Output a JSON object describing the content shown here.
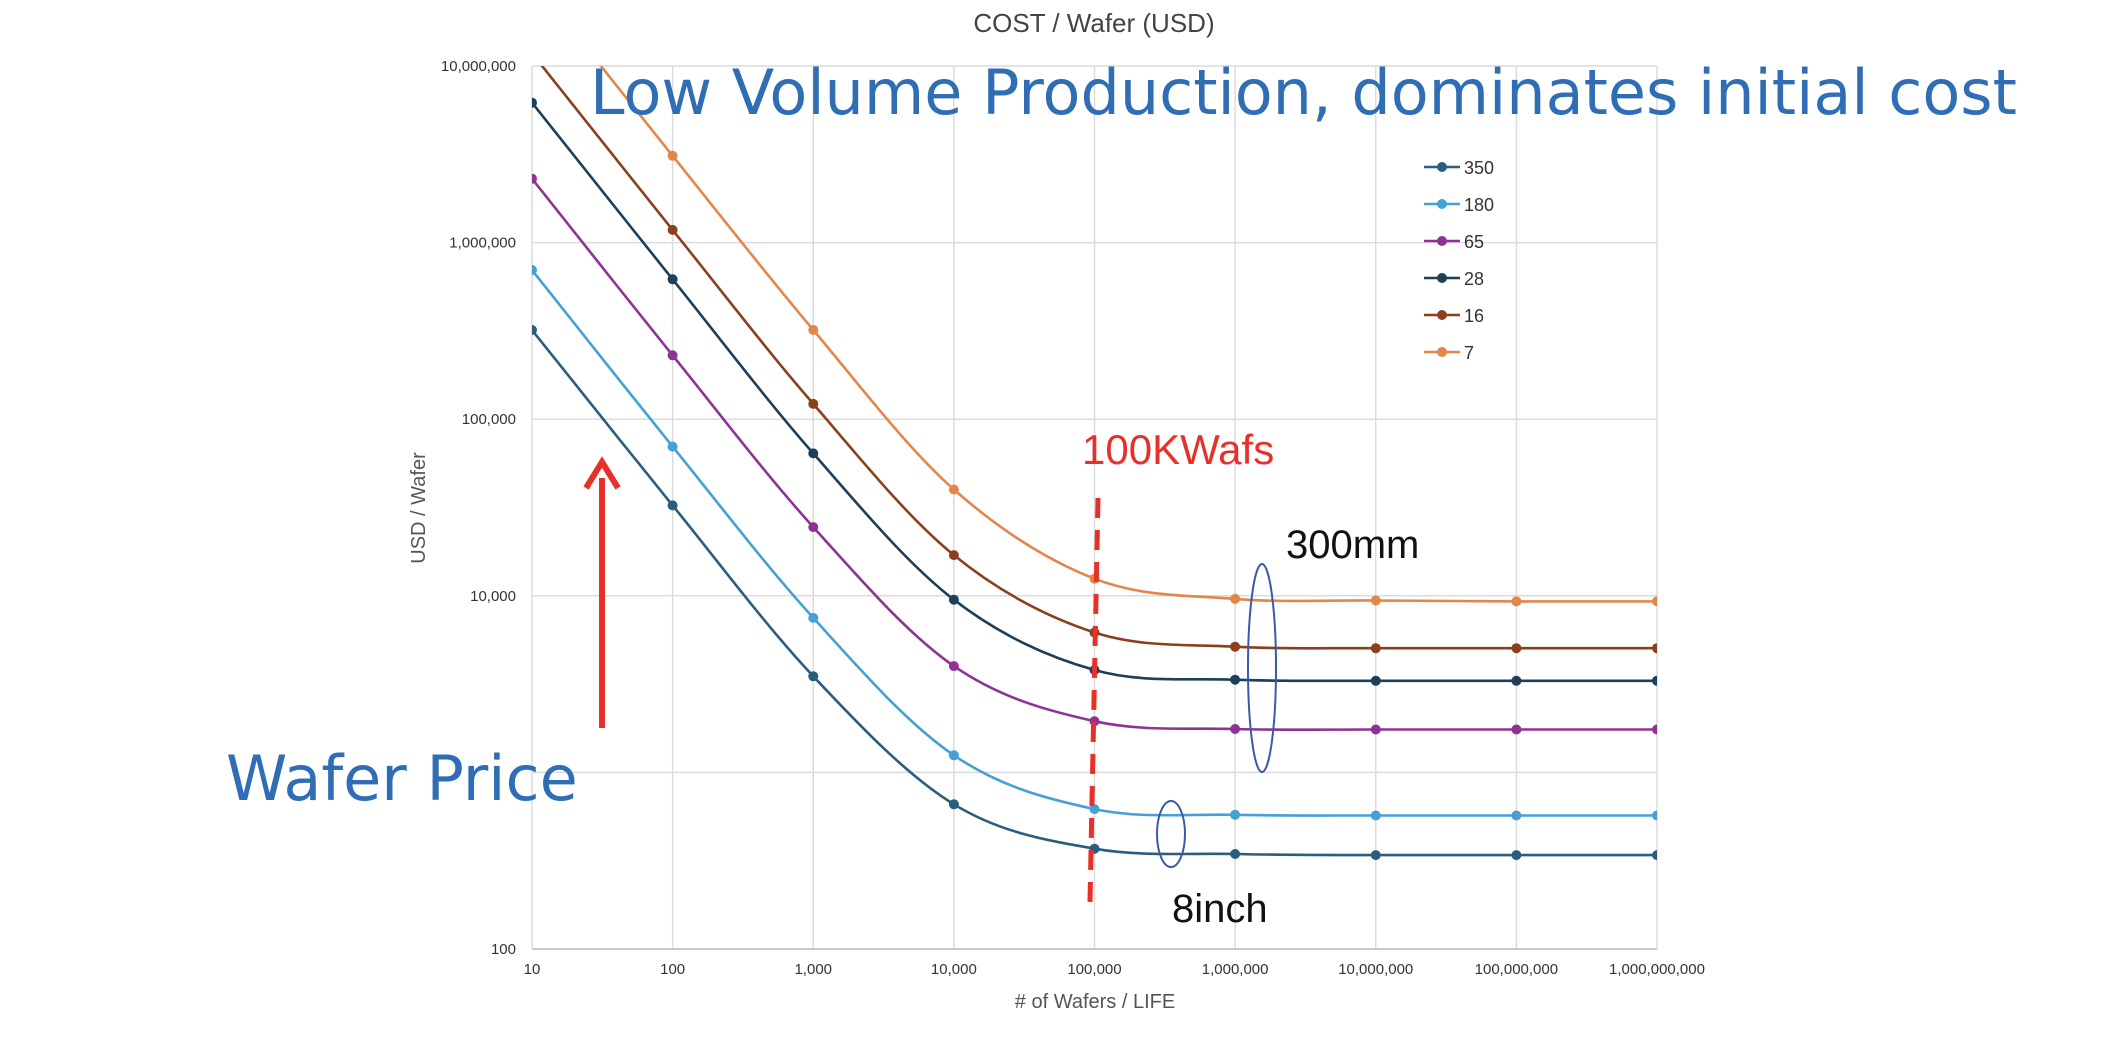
{
  "headline": "Low Volume Production, dominates initial cost",
  "side_label": "Wafer Price",
  "annotations": {
    "volume_marker": "100KWafs",
    "group_300": "300mm",
    "group_200": "8inch"
  },
  "colors": {
    "headline": "#2f6eb5",
    "marker": "#e8302a"
  },
  "chart_data": {
    "type": "line",
    "title": "COST  / Wafer (USD)",
    "xlabel": "# of Wafers / LIFE",
    "ylabel": "USD / Wafer",
    "x_scale": "log",
    "y_scale": "log",
    "xlim": [
      10,
      1000000000
    ],
    "ylim": [
      100,
      10000000
    ],
    "grid": true,
    "legend_position": "top-right",
    "x_ticks": [
      10,
      100,
      1000,
      10000,
      100000,
      1000000,
      10000000,
      100000000,
      1000000000
    ],
    "x_tick_labels": [
      "10",
      "100",
      "1,000",
      "10,000",
      "100,000",
      "1,000,000",
      "10,000,000",
      "100,000,000",
      "1,000,000,000"
    ],
    "y_ticks": [
      100,
      1000,
      10000,
      100000,
      1000000,
      10000000
    ],
    "y_tick_labels": [
      "100",
      "",
      "10,000",
      "100,000",
      "1,000,000",
      "10,000,000"
    ],
    "x": [
      10,
      100,
      1000,
      10000,
      100000,
      1000000,
      10000000,
      100000000,
      1000000000
    ],
    "series": [
      {
        "name": "350",
        "color": "#2b5d7e",
        "values": [
          320000,
          32500,
          3500,
          660,
          370,
          345,
          340,
          340,
          340
        ]
      },
      {
        "name": "180",
        "color": "#45a0d6",
        "values": [
          700000,
          70000,
          7500,
          1250,
          620,
          575,
          570,
          570,
          570
        ]
      },
      {
        "name": "65",
        "color": "#8e3393",
        "values": [
          2300000,
          230000,
          24500,
          4000,
          1950,
          1760,
          1750,
          1750,
          1750
        ]
      },
      {
        "name": "28",
        "color": "#1d3f59",
        "values": [
          6200000,
          620000,
          64000,
          9500,
          3800,
          3350,
          3300,
          3300,
          3300
        ]
      },
      {
        "name": "16",
        "color": "#8b3f1a",
        "values": [
          11800000,
          1180000,
          122000,
          17000,
          6200,
          5150,
          5050,
          5050,
          5050
        ]
      },
      {
        "name": "7",
        "color": "#e3864a",
        "values": [
          31000000,
          3100000,
          320000,
          40000,
          12500,
          9600,
          9400,
          9300,
          9300
        ]
      }
    ]
  }
}
